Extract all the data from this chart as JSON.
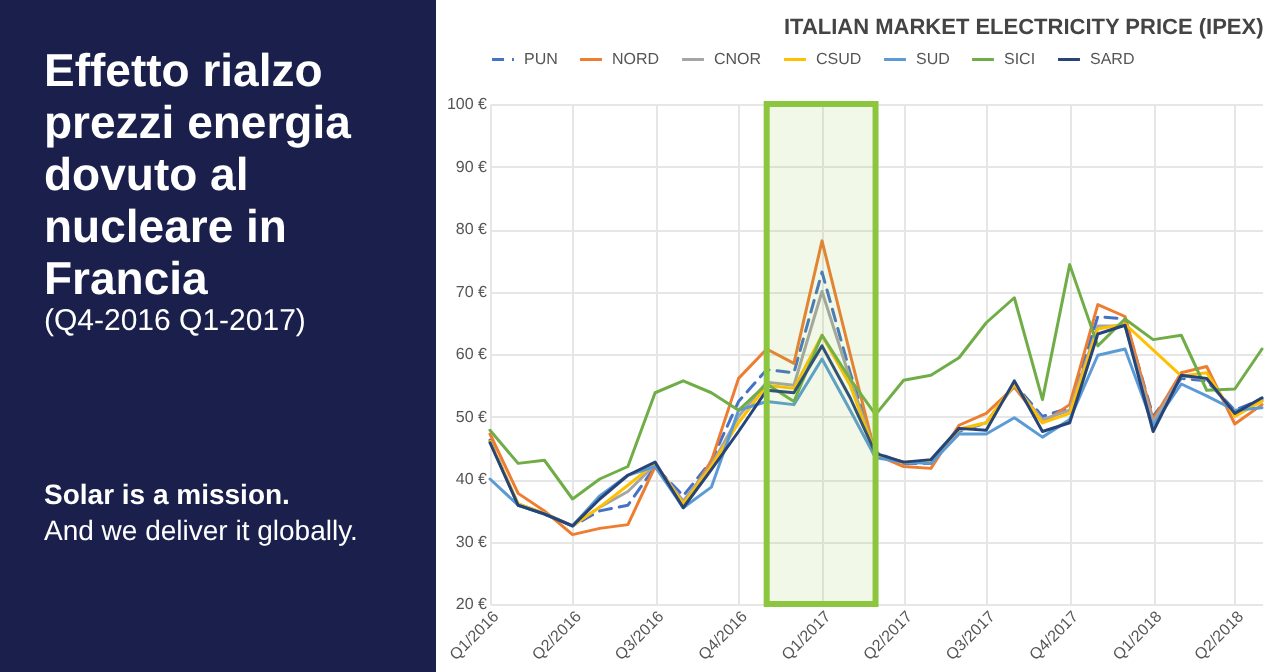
{
  "chart_data": {
    "type": "line",
    "title": "ITALIAN MARKET ELECTRICITY PRICE (IPEX)",
    "subtitle": "Effetto rialzo prezzi energia dovuto al nucleare in Francia",
    "annotations": [
      "(Q4-2016 Q1-2017)",
      "Solar is a mission.",
      "And we deliver it globally."
    ],
    "x": [
      "2016-01",
      "2016-02",
      "2016-03",
      "2016-04",
      "2016-05",
      "2016-06",
      "2016-07",
      "2016-08",
      "2016-09",
      "2016-10",
      "2016-11",
      "2016-12",
      "2017-01",
      "2017-02",
      "2017-03",
      "2017-04",
      "2017-05",
      "2017-06",
      "2017-07",
      "2017-08",
      "2017-09",
      "2017-10",
      "2017-11",
      "2017-12",
      "2018-01",
      "2018-02",
      "2018-03",
      "2018-04",
      "2018-05"
    ],
    "series": [
      {
        "name": "PUN",
        "color": "#4472c4",
        "line_style": "dashed",
        "values": [
          46.2,
          35.8,
          34.4,
          32.5,
          34.9,
          35.8,
          42,
          37.3,
          42.9,
          52.4,
          57.5,
          57,
          73.1,
          57,
          44.3,
          42.5,
          42.5,
          47.6,
          49,
          55.2,
          50,
          51.4,
          66,
          65.6,
          50,
          56.1,
          55.7,
          51,
          52.8
        ]
      },
      {
        "name": "NORD",
        "color": "#ed7d31",
        "line_style": "solid",
        "values": [
          47.2,
          37.7,
          34.9,
          31.1,
          32.1,
          32.7,
          42,
          35.8,
          42.9,
          56.1,
          60.8,
          58.5,
          78.1,
          60,
          43.9,
          42,
          41.7,
          48.6,
          50.5,
          54.7,
          49,
          51.9,
          67.9,
          66,
          49.5,
          57,
          58,
          48.8,
          51.9
        ]
      },
      {
        "name": "CNOR",
        "color": "#a5a5a5",
        "line_style": "solid",
        "values": [
          46,
          36,
          34.5,
          32.5,
          35.5,
          38,
          42.3,
          36.5,
          42.2,
          50,
          55.5,
          55,
          70,
          56,
          44,
          42.6,
          42.6,
          47.8,
          49,
          55,
          49.5,
          51,
          64.5,
          64.5,
          49,
          56.5,
          56,
          50.5,
          52.5
        ]
      },
      {
        "name": "CSUD",
        "color": "#ffc000",
        "line_style": "solid",
        "values": [
          46,
          36,
          34.5,
          32.5,
          35.5,
          39,
          42.5,
          36,
          42,
          49,
          55,
          54.5,
          63,
          55,
          44,
          42.7,
          42.8,
          48,
          49,
          55.2,
          49,
          50.5,
          64,
          64.8,
          null,
          56.5,
          57,
          50,
          52.5
        ]
      },
      {
        "name": "SUD",
        "color": "#5b9bd5",
        "line_style": "solid",
        "values": [
          40,
          35.8,
          34.4,
          32.5,
          37.3,
          40.6,
          42,
          35.4,
          38.7,
          51,
          52.4,
          51.9,
          59.2,
          51,
          43.4,
          42.7,
          42.5,
          47.2,
          47.2,
          49.8,
          46.7,
          49.5,
          59.8,
          60.8,
          48.6,
          55.2,
          53.3,
          51,
          51.4
        ]
      },
      {
        "name": "SICI",
        "color": "#70ad47",
        "line_style": "solid",
        "values": [
          47.8,
          42.5,
          43,
          36.8,
          40,
          42,
          53.8,
          55.7,
          53.8,
          51,
          55.2,
          52.4,
          63,
          56,
          50.3,
          55.8,
          56.6,
          59.4,
          65,
          69,
          52.7,
          74.3,
          61.3,
          65.6,
          62.3,
          63,
          54.2,
          54.4,
          60.8
        ]
      },
      {
        "name": "SARD",
        "color": "#264478",
        "line_style": "solid",
        "values": [
          45.8,
          35.8,
          34.4,
          32.5,
          36.8,
          40.6,
          42.7,
          35.4,
          41.5,
          47.6,
          54.2,
          53.8,
          61.3,
          53,
          44.1,
          42.7,
          43.1,
          48.1,
          47.8,
          55.7,
          47.6,
          49,
          63.2,
          64.6,
          47.6,
          56.6,
          56.1,
          50.5,
          53
        ]
      }
    ],
    "xlim": [
      "2016-01",
      "2018-05"
    ],
    "xticks": [
      {
        "value": "2016-01",
        "label": "Q1/2016"
      },
      {
        "value": "2016-04",
        "label": "Q2/2016"
      },
      {
        "value": "2016-07",
        "label": "Q3/2016"
      },
      {
        "value": "2016-10",
        "label": "Q4/2016"
      },
      {
        "value": "2017-01",
        "label": "Q1/2017"
      },
      {
        "value": "2017-04",
        "label": "Q2/2017"
      },
      {
        "value": "2017-07",
        "label": "Q3/2017"
      },
      {
        "value": "2017-10",
        "label": "Q4/2017"
      },
      {
        "value": "2018-01",
        "label": "Q1/2018"
      },
      {
        "value": "2018-04",
        "label": "Q2/2018"
      }
    ],
    "ylim": [
      20,
      100
    ],
    "yticks": [
      {
        "value": 20,
        "label": "20 €"
      },
      {
        "value": 30,
        "label": "30 €"
      },
      {
        "value": 40,
        "label": "40 €"
      },
      {
        "value": 50,
        "label": "50 €"
      },
      {
        "value": 60,
        "label": "60 €"
      },
      {
        "value": 70,
        "label": "70 €"
      },
      {
        "value": 80,
        "label": "80 €"
      },
      {
        "value": 90,
        "label": "90 €"
      },
      {
        "value": 100,
        "label": "100 €"
      }
    ],
    "bands": [
      {
        "axis": "x",
        "from": "2016-11",
        "to": "2017-03",
        "color": "#8cc63f"
      }
    ],
    "grid": true,
    "legend": "top",
    "marker": "none"
  }
}
